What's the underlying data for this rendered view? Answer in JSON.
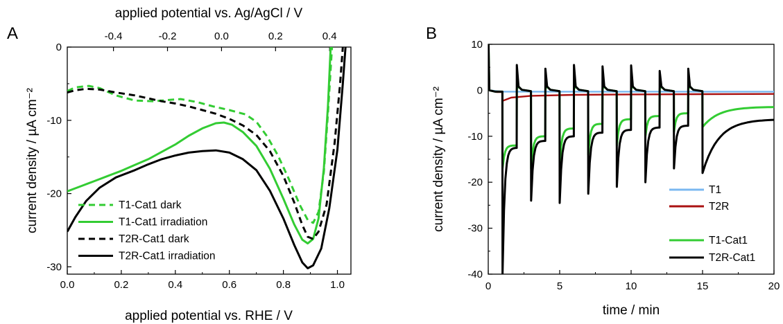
{
  "chart_data": [
    {
      "panel_label": "A",
      "type": "line",
      "xlabel": "applied potential vs. RHE / V",
      "x2label": "applied potential vs. Ag/AgCl / V",
      "ylabel": "current density / µA cm⁻²",
      "xlim": [
        0.0,
        1.05
      ],
      "ylim": [
        -31,
        0
      ],
      "x_ticks": [
        "0.0",
        "0.2",
        "0.4",
        "0.6",
        "0.8",
        "1.0"
      ],
      "x2_ticks": [
        "-0.4",
        "-0.2",
        "0.0",
        "0.2",
        "0.4"
      ],
      "x2_offset": -0.571,
      "y_ticks": [
        "0",
        "-10",
        "-20",
        "-30"
      ],
      "legend_position": "bottom-left",
      "series": [
        {
          "name": "T1-Cat1 dark",
          "color": "#33cc33",
          "dash": true,
          "points": [
            [
              0.0,
              -6.0
            ],
            [
              0.03,
              -5.5
            ],
            [
              0.08,
              -5.3
            ],
            [
              0.12,
              -5.6
            ],
            [
              0.18,
              -6.6
            ],
            [
              0.25,
              -7.3
            ],
            [
              0.32,
              -7.4
            ],
            [
              0.38,
              -7.2
            ],
            [
              0.42,
              -7.1
            ],
            [
              0.48,
              -7.5
            ],
            [
              0.54,
              -8.1
            ],
            [
              0.6,
              -8.6
            ],
            [
              0.66,
              -9.2
            ],
            [
              0.7,
              -10.2
            ],
            [
              0.74,
              -12.2
            ],
            [
              0.78,
              -14.8
            ],
            [
              0.82,
              -18.0
            ],
            [
              0.86,
              -21.5
            ],
            [
              0.89,
              -23.6
            ],
            [
              0.91,
              -24.0
            ],
            [
              0.93,
              -22.5
            ],
            [
              0.95,
              -17.0
            ],
            [
              0.965,
              -9.0
            ],
            [
              0.98,
              0.0
            ]
          ]
        },
        {
          "name": "T1-Cat1 irradiation",
          "color": "#33cc33",
          "dash": false,
          "points": [
            [
              0.0,
              -19.7
            ],
            [
              0.05,
              -19.0
            ],
            [
              0.1,
              -18.3
            ],
            [
              0.15,
              -17.6
            ],
            [
              0.2,
              -16.9
            ],
            [
              0.25,
              -16.1
            ],
            [
              0.3,
              -15.3
            ],
            [
              0.35,
              -14.3
            ],
            [
              0.4,
              -13.3
            ],
            [
              0.45,
              -12.1
            ],
            [
              0.5,
              -11.1
            ],
            [
              0.55,
              -10.4
            ],
            [
              0.58,
              -10.3
            ],
            [
              0.61,
              -10.6
            ],
            [
              0.65,
              -11.6
            ],
            [
              0.7,
              -13.5
            ],
            [
              0.75,
              -16.6
            ],
            [
              0.8,
              -20.7
            ],
            [
              0.84,
              -24.2
            ],
            [
              0.87,
              -26.3
            ],
            [
              0.89,
              -26.8
            ],
            [
              0.91,
              -26.2
            ],
            [
              0.93,
              -23.4
            ],
            [
              0.95,
              -16.5
            ],
            [
              0.965,
              -8.0
            ],
            [
              0.975,
              0.0
            ]
          ]
        },
        {
          "name": "T2R-Cat1 dark",
          "color": "#000000",
          "dash": true,
          "points": [
            [
              0.0,
              -6.2
            ],
            [
              0.03,
              -5.9
            ],
            [
              0.07,
              -5.7
            ],
            [
              0.12,
              -5.8
            ],
            [
              0.18,
              -6.2
            ],
            [
              0.25,
              -6.6
            ],
            [
              0.3,
              -7.0
            ],
            [
              0.35,
              -7.4
            ],
            [
              0.4,
              -7.7
            ],
            [
              0.45,
              -8.1
            ],
            [
              0.5,
              -8.6
            ],
            [
              0.55,
              -9.1
            ],
            [
              0.6,
              -9.8
            ],
            [
              0.65,
              -10.7
            ],
            [
              0.7,
              -12.0
            ],
            [
              0.75,
              -14.2
            ],
            [
              0.8,
              -17.6
            ],
            [
              0.84,
              -21.2
            ],
            [
              0.87,
              -24.3
            ],
            [
              0.89,
              -25.9
            ],
            [
              0.91,
              -26.2
            ],
            [
              0.93,
              -25.2
            ],
            [
              0.96,
              -21.5
            ],
            [
              0.99,
              -13.0
            ],
            [
              1.01,
              -5.0
            ],
            [
              1.02,
              0.0
            ]
          ]
        },
        {
          "name": "T2R-Cat1 irradiation",
          "color": "#000000",
          "dash": false,
          "points": [
            [
              0.0,
              -25.2
            ],
            [
              0.03,
              -23.2
            ],
            [
              0.07,
              -21.0
            ],
            [
              0.12,
              -19.2
            ],
            [
              0.18,
              -17.8
            ],
            [
              0.25,
              -16.8
            ],
            [
              0.3,
              -16.0
            ],
            [
              0.35,
              -15.3
            ],
            [
              0.4,
              -14.8
            ],
            [
              0.45,
              -14.4
            ],
            [
              0.5,
              -14.2
            ],
            [
              0.55,
              -14.1
            ],
            [
              0.6,
              -14.4
            ],
            [
              0.65,
              -15.3
            ],
            [
              0.7,
              -16.8
            ],
            [
              0.75,
              -19.6
            ],
            [
              0.8,
              -23.4
            ],
            [
              0.84,
              -27.0
            ],
            [
              0.87,
              -29.4
            ],
            [
              0.89,
              -30.2
            ],
            [
              0.91,
              -29.8
            ],
            [
              0.94,
              -27.5
            ],
            [
              0.97,
              -22.0
            ],
            [
              1.0,
              -14.0
            ],
            [
              1.02,
              -5.0
            ],
            [
              1.03,
              0.0
            ]
          ]
        }
      ]
    },
    {
      "panel_label": "B",
      "type": "line",
      "xlabel": "time / min",
      "ylabel": "current density / µA cm⁻²",
      "xlim": [
        0,
        20
      ],
      "ylim": [
        -40,
        10
      ],
      "x_ticks": [
        "0",
        "5",
        "10",
        "15",
        "20"
      ],
      "y_ticks": [
        "10",
        "0",
        "-10",
        "-20",
        "-30",
        "-40"
      ],
      "legend_position": "bottom-right",
      "light_on_min": [
        1,
        3,
        5,
        7,
        9,
        11,
        13,
        15
      ],
      "light_off_min": [
        2,
        4,
        6,
        8,
        10,
        12,
        14
      ],
      "series": [
        {
          "name": "T1",
          "color": "#7ab8f0",
          "baseline": -0.3
        },
        {
          "name": "T2R",
          "color": "#aa1111",
          "baseline": -0.8
        },
        {
          "name": "T1-Cat1",
          "color": "#33cc33",
          "on_spikes": [
            -17.0,
            -17.0,
            -16.0,
            -14.0,
            -12.0,
            -10.0,
            -9.0,
            -8.0
          ],
          "on_levels": [
            -12.0,
            -10.0,
            -8.3,
            -7.3,
            -6.3,
            -5.6,
            -5.0,
            -4.6
          ],
          "final": -3.6
        },
        {
          "name": "T2R-Cat1",
          "color": "#000000",
          "on_spikes": [
            -40.0,
            -24.0,
            -24.5,
            -22.5,
            -21.0,
            -20.0,
            -17.0,
            -18.0
          ],
          "on_levels": [
            -12.5,
            -11.0,
            -10.0,
            -9.2,
            -8.6,
            -8.1,
            -7.7,
            -7.3
          ],
          "off_spikes": [
            5.5,
            4.7,
            5.5,
            5.2,
            5.4,
            4.2,
            4.7
          ],
          "final": -6.3
        }
      ]
    }
  ]
}
